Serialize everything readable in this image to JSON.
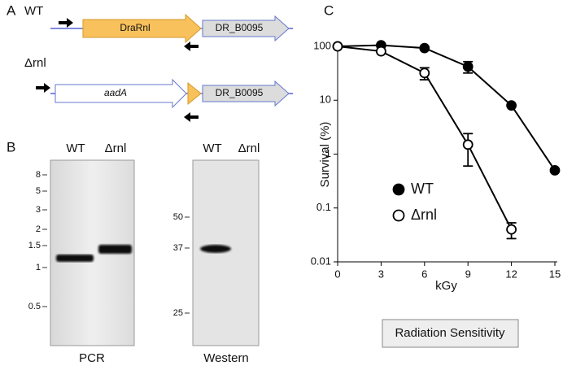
{
  "panel_a": {
    "label": "A",
    "wt_label": "WT",
    "mutant_label": "Δrnl",
    "gene_wt": "DraRnl",
    "gene_downstream": "DR_B0095",
    "gene_cassette": "aadA",
    "gene_downstream_mutant": "DR_B0095"
  },
  "panel_b": {
    "label": "B",
    "pcr": {
      "lanes": [
        "WT",
        "Δrnl"
      ],
      "ladder": [
        "8",
        "5",
        "3",
        "2",
        "1.5",
        "1",
        "0.5"
      ],
      "caption": "PCR"
    },
    "western": {
      "lanes": [
        "WT",
        "Δrnl"
      ],
      "ladder": [
        "50",
        "37",
        "25"
      ],
      "caption": "Western"
    }
  },
  "panel_c": {
    "label": "C",
    "caption": "Radiation Sensitivity"
  },
  "chart_data": {
    "type": "line",
    "x_label": "kGy",
    "y_label": "Survival (%)",
    "x": [
      0,
      3,
      6,
      9,
      12,
      15
    ],
    "xlim": [
      0,
      15
    ],
    "xticks": [
      0,
      3,
      6,
      9,
      12,
      15
    ],
    "ylim": [
      0.01,
      100
    ],
    "yticks": [
      0.01,
      0.1,
      1,
      10,
      100
    ],
    "y_scale": "log",
    "series": [
      {
        "name": "WT",
        "color": "#000000",
        "marker": "filled",
        "values": [
          100,
          105,
          93,
          42,
          8,
          0.5
        ],
        "errors": [
          null,
          null,
          null,
          10,
          null,
          null
        ]
      },
      {
        "name": "Δrnl",
        "color": "#000000",
        "marker": "open",
        "values": [
          100,
          81,
          32,
          1.5,
          0.04,
          null
        ],
        "errors": [
          null,
          null,
          8,
          0.9,
          0.013,
          null
        ]
      }
    ]
  }
}
